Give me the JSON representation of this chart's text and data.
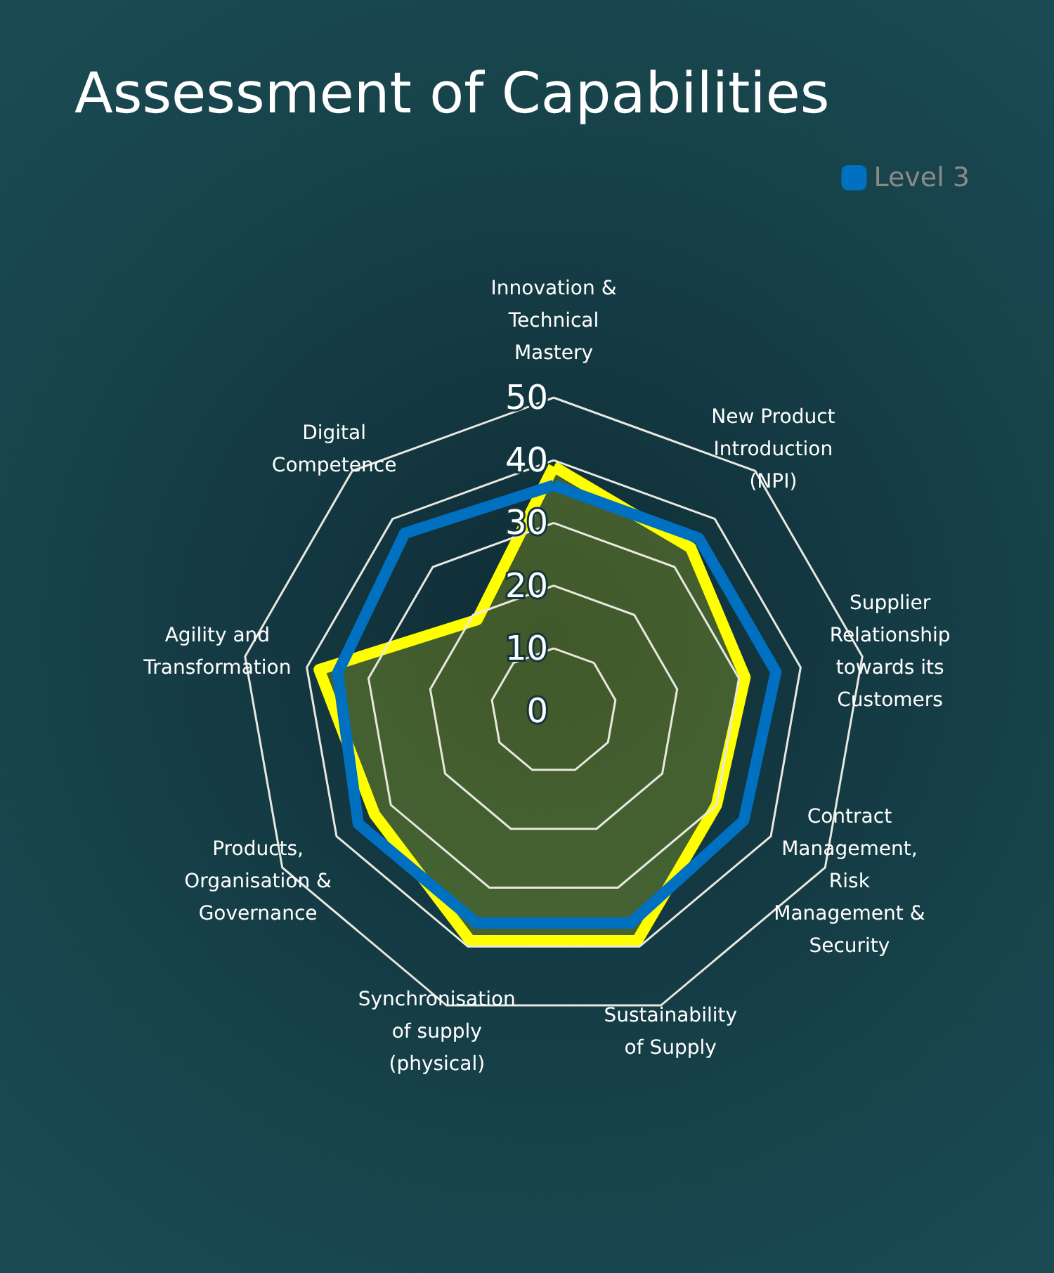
{
  "chart_data": {
    "type": "radar",
    "title": "Assessment of Capabilities",
    "categories": [
      "Innovation & Technical Mastery",
      "New Product Introduction (NPI)",
      "Supplier Relationship towards its Customers",
      "Contract Management, Risk Management & Security",
      "Sustainability of Supply",
      "Synchronisation of supply (physical)",
      "Products, Organisation & Governance",
      "Agility and Transformation",
      "Digital Competence"
    ],
    "series": [
      {
        "color": "#ffff00",
        "values": [
          39,
          34,
          31,
          30,
          39,
          39,
          33,
          38,
          19
        ]
      },
      {
        "name": "Level 3",
        "color": "#0070c0",
        "values": [
          36,
          36,
          36,
          35,
          36,
          36,
          36,
          35,
          37
        ]
      }
    ],
    "ylim": [
      0,
      50
    ],
    "yticks": [
      0,
      10,
      20,
      30,
      40,
      50
    ],
    "grid": true,
    "legend": "top right",
    "marker": "none"
  }
}
